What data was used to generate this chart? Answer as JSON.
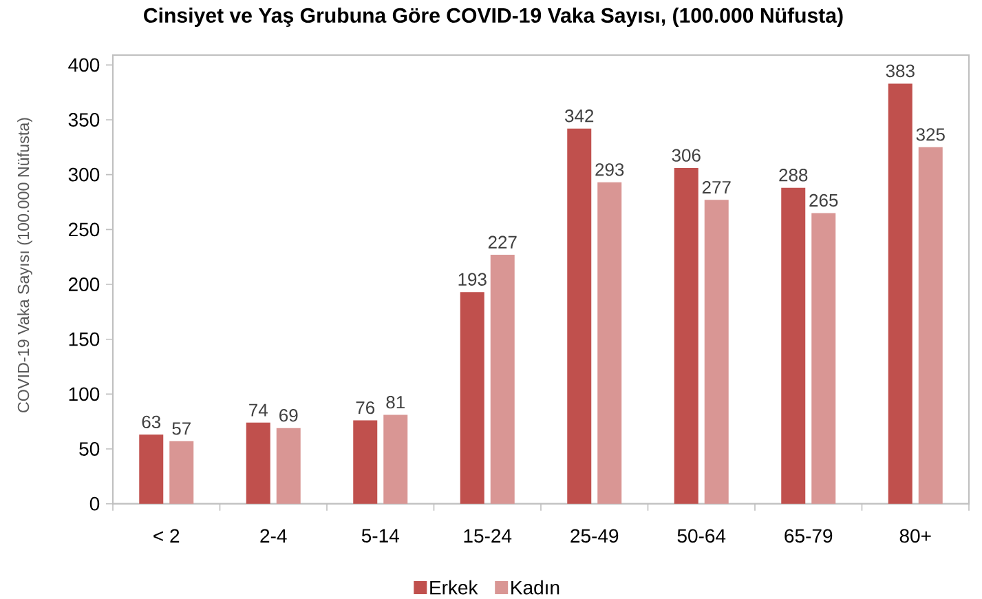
{
  "chart_data": {
    "type": "bar",
    "title": "Cinsiyet ve Yaş Grubuna Göre COVID-19 Vaka Sayısı, (100.000 Nüfusta)",
    "ylabel": "COVID-19 Vaka Sayısı (100.000 Nüfusta)",
    "categories": [
      "< 2",
      "2-4",
      "5-14",
      "15-24",
      "25-49",
      "50-64",
      "65-79",
      "80+"
    ],
    "series": [
      {
        "name": "Erkek",
        "color": "#c0504d",
        "values": [
          63,
          74,
          76,
          193,
          342,
          306,
          288,
          383
        ]
      },
      {
        "name": "Kadın",
        "color": "#d99694",
        "values": [
          57,
          69,
          81,
          227,
          293,
          277,
          265,
          325
        ]
      }
    ],
    "ylim": [
      0,
      409
    ],
    "yticks": [
      0,
      50,
      100,
      150,
      200,
      250,
      300,
      350,
      400
    ],
    "data_labels": true,
    "legend": "bottom"
  }
}
